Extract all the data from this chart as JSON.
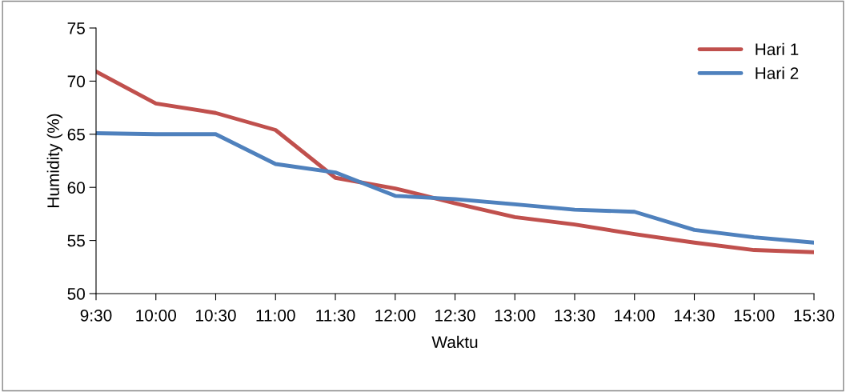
{
  "chart_data": {
    "type": "line",
    "xlabel": "Waktu",
    "ylabel": "Humidity (%)",
    "categories": [
      "9:30",
      "10:00",
      "10:30",
      "11:00",
      "11:30",
      "12:00",
      "12:30",
      "13:00",
      "13:30",
      "14:00",
      "14:30",
      "15:00",
      "15:30"
    ],
    "series": [
      {
        "name": "Hari 1",
        "color": "#c0504d",
        "values": [
          70.9,
          67.9,
          67.0,
          65.4,
          60.9,
          59.9,
          58.5,
          57.2,
          56.5,
          55.6,
          54.8,
          54.1,
          53.9
        ]
      },
      {
        "name": "Hari 2",
        "color": "#4f81bd",
        "values": [
          65.1,
          65.0,
          65.0,
          62.2,
          61.4,
          59.2,
          58.9,
          58.4,
          57.9,
          57.7,
          56.0,
          55.3,
          54.8
        ]
      }
    ],
    "ylim": [
      50,
      75
    ],
    "yticks": [
      50,
      55,
      60,
      65,
      70,
      75
    ],
    "grid": false,
    "legend": "top right",
    "marker": "none",
    "line_style": "solid"
  }
}
